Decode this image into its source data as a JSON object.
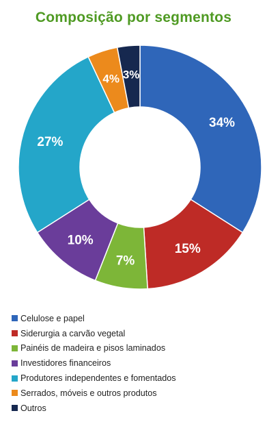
{
  "chart_data": {
    "type": "donut",
    "title": "Composição por segmentos",
    "title_color": "#4f9a23",
    "categories": [
      "Celulose e papel",
      "Siderurgia a carvão vegetal",
      "Painéis de madeira e pisos laminados",
      "Investidores financeiros",
      "Produtores independentes e fomentados",
      "Serrados, móveis e outros produtos",
      "Outros"
    ],
    "values": [
      34,
      15,
      7,
      10,
      27,
      4,
      3
    ],
    "labels": [
      "34%",
      "15%",
      "7%",
      "10%",
      "27%",
      "4%",
      "3%"
    ],
    "colors": [
      "#2f66b9",
      "#be2b26",
      "#7db638",
      "#6a3d9a",
      "#24a6c9",
      "#ec8a1c",
      "#16284f"
    ],
    "legend_position": "bottom"
  }
}
